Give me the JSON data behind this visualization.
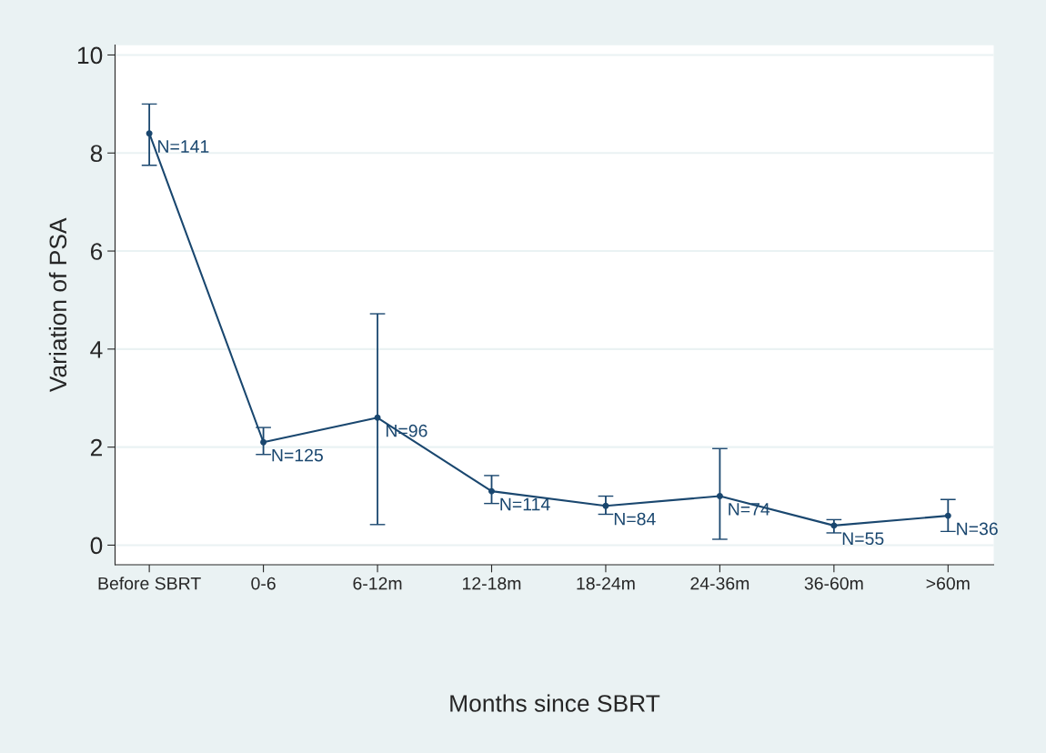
{
  "chart_data": {
    "type": "line",
    "xlabel": "Months since SBRT",
    "ylabel": "Variation of PSA",
    "categories": [
      "Before SBRT",
      "0-6",
      "6-12m",
      "12-18m",
      "18-24m",
      "24-36m",
      "36-60m",
      ">60m"
    ],
    "series": [
      {
        "color": "#1a476f",
        "values": [
          8.4,
          2.1,
          2.6,
          1.1,
          0.8,
          1.0,
          0.4,
          0.6
        ],
        "errors": [
          [
            7.75,
            9.0
          ],
          [
            1.85,
            2.4
          ],
          [
            0.42,
            4.72
          ],
          [
            0.85,
            1.42
          ],
          [
            0.63,
            1.0
          ],
          [
            0.12,
            1.97
          ],
          [
            0.25,
            0.52
          ],
          [
            0.28,
            0.93
          ]
        ]
      }
    ],
    "ylim": [
      -0.4,
      10.2
    ],
    "yticks": [
      0,
      2,
      4,
      6,
      8,
      10
    ],
    "annotations": [
      {
        "text": "N=141",
        "x": "Before SBRT",
        "y": 8.4
      },
      {
        "text": "N=125",
        "x": "0-6",
        "y": 2.1
      },
      {
        "text": "N=96",
        "x": "6-12m",
        "y": 2.6
      },
      {
        "text": "N=114",
        "x": "12-18m",
        "y": 1.1
      },
      {
        "text": "N=84",
        "x": "18-24m",
        "y": 0.8
      },
      {
        "text": "N=74",
        "x": "24-36m",
        "y": 1.0
      },
      {
        "text": "N=55",
        "x": "36-60m",
        "y": 0.4
      },
      {
        "text": "N=36",
        "x": ">60m",
        "y": 0.6
      }
    ],
    "grid": "y",
    "marker": "circle",
    "line_style": "solid"
  }
}
